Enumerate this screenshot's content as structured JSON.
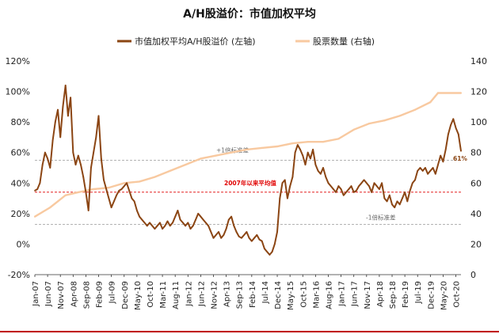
{
  "chart_data": {
    "type": "line",
    "title": "A/H股溢价：市值加权平均",
    "x_ticks": [
      "Jan-07",
      "Jun-07",
      "Nov-07",
      "Apr-08",
      "Sep-08",
      "Feb-09",
      "Jul-09",
      "Dec-09",
      "May-10",
      "Oct-10",
      "Mar-11",
      "Aug-11",
      "Jan-12",
      "Jun-12",
      "Nov-12",
      "Apr-13",
      "Sep-13",
      "Feb-14",
      "Jul-14",
      "Dec-14",
      "May-15",
      "Oct-15",
      "Mar-16",
      "Aug-16",
      "Jan-17",
      "Jun-17",
      "Nov-17",
      "Apr-18",
      "Sep-18",
      "Feb-19",
      "Jul-19",
      "Dec-19",
      "May-20",
      "Oct-20"
    ],
    "y_left_ticks": [
      "-20%",
      "0%",
      "20%",
      "40%",
      "60%",
      "80%",
      "100%",
      "120%"
    ],
    "y_right_ticks": [
      "0",
      "20",
      "40",
      "60",
      "80",
      "100",
      "120",
      "140"
    ],
    "y_left_range": [
      -20,
      120
    ],
    "y_right_range": [
      0,
      140
    ],
    "grid": false,
    "legend_position": "top",
    "series": [
      {
        "name": "市值加权平均A/H股溢价 (左轴)",
        "axis": "left",
        "color": "#8B4513",
        "points": [
          [
            "2007-01",
            35
          ],
          [
            "2007-02",
            36
          ],
          [
            "2007-03",
            40
          ],
          [
            "2007-04",
            52
          ],
          [
            "2007-05",
            60
          ],
          [
            "2007-06",
            56
          ],
          [
            "2007-07",
            50
          ],
          [
            "2007-08",
            68
          ],
          [
            "2007-09",
            80
          ],
          [
            "2007-10",
            88
          ],
          [
            "2007-11",
            70
          ],
          [
            "2007-12",
            90
          ],
          [
            "2008-01",
            104
          ],
          [
            "2008-02",
            84
          ],
          [
            "2008-03",
            96
          ],
          [
            "2008-04",
            60
          ],
          [
            "2008-05",
            52
          ],
          [
            "2008-06",
            58
          ],
          [
            "2008-07",
            52
          ],
          [
            "2008-08",
            44
          ],
          [
            "2008-09",
            34
          ],
          [
            "2008-10",
            22
          ],
          [
            "2008-11",
            50
          ],
          [
            "2008-12",
            60
          ],
          [
            "2009-01",
            70
          ],
          [
            "2009-02",
            84
          ],
          [
            "2009-03",
            56
          ],
          [
            "2009-04",
            42
          ],
          [
            "2009-05",
            36
          ],
          [
            "2009-06",
            30
          ],
          [
            "2009-07",
            24
          ],
          [
            "2009-08",
            28
          ],
          [
            "2009-09",
            32
          ],
          [
            "2009-10",
            35
          ],
          [
            "2009-11",
            36
          ],
          [
            "2009-12",
            38
          ],
          [
            "2010-01",
            40
          ],
          [
            "2010-02",
            35
          ],
          [
            "2010-03",
            30
          ],
          [
            "2010-04",
            28
          ],
          [
            "2010-05",
            22
          ],
          [
            "2010-06",
            18
          ],
          [
            "2010-07",
            16
          ],
          [
            "2010-08",
            14
          ],
          [
            "2010-09",
            12
          ],
          [
            "2010-10",
            14
          ],
          [
            "2010-11",
            12
          ],
          [
            "2010-12",
            10
          ],
          [
            "2011-01",
            12
          ],
          [
            "2011-02",
            14
          ],
          [
            "2011-03",
            10
          ],
          [
            "2011-04",
            12
          ],
          [
            "2011-05",
            15
          ],
          [
            "2011-06",
            12
          ],
          [
            "2011-07",
            14
          ],
          [
            "2011-08",
            18
          ],
          [
            "2011-09",
            22
          ],
          [
            "2011-10",
            16
          ],
          [
            "2011-11",
            14
          ],
          [
            "2011-12",
            12
          ],
          [
            "2012-01",
            14
          ],
          [
            "2012-02",
            10
          ],
          [
            "2012-03",
            12
          ],
          [
            "2012-04",
            16
          ],
          [
            "2012-05",
            20
          ],
          [
            "2012-06",
            18
          ],
          [
            "2012-07",
            16
          ],
          [
            "2012-08",
            14
          ],
          [
            "2012-09",
            12
          ],
          [
            "2012-10",
            8
          ],
          [
            "2012-11",
            4
          ],
          [
            "2012-12",
            6
          ],
          [
            "2013-01",
            8
          ],
          [
            "2013-02",
            4
          ],
          [
            "2013-03",
            6
          ],
          [
            "2013-04",
            10
          ],
          [
            "2013-05",
            16
          ],
          [
            "2013-06",
            18
          ],
          [
            "2013-07",
            12
          ],
          [
            "2013-08",
            8
          ],
          [
            "2013-09",
            5
          ],
          [
            "2013-10",
            4
          ],
          [
            "2013-11",
            6
          ],
          [
            "2013-12",
            8
          ],
          [
            "2014-01",
            4
          ],
          [
            "2014-02",
            2
          ],
          [
            "2014-03",
            4
          ],
          [
            "2014-04",
            6
          ],
          [
            "2014-05",
            3
          ],
          [
            "2014-06",
            2
          ],
          [
            "2014-07",
            -3
          ],
          [
            "2014-08",
            -5
          ],
          [
            "2014-09",
            -7
          ],
          [
            "2014-10",
            -5
          ],
          [
            "2014-11",
            0
          ],
          [
            "2014-12",
            8
          ],
          [
            "2015-01",
            30
          ],
          [
            "2015-02",
            40
          ],
          [
            "2015-03",
            42
          ],
          [
            "2015-04",
            30
          ],
          [
            "2015-05",
            38
          ],
          [
            "2015-06",
            44
          ],
          [
            "2015-07",
            60
          ],
          [
            "2015-08",
            65
          ],
          [
            "2015-09",
            62
          ],
          [
            "2015-10",
            58
          ],
          [
            "2015-11",
            52
          ],
          [
            "2015-12",
            60
          ],
          [
            "2016-01",
            56
          ],
          [
            "2016-02",
            62
          ],
          [
            "2016-03",
            52
          ],
          [
            "2016-04",
            48
          ],
          [
            "2016-05",
            46
          ],
          [
            "2016-06",
            50
          ],
          [
            "2016-07",
            44
          ],
          [
            "2016-08",
            40
          ],
          [
            "2016-09",
            38
          ],
          [
            "2016-10",
            36
          ],
          [
            "2016-11",
            34
          ],
          [
            "2016-12",
            38
          ],
          [
            "2017-01",
            36
          ],
          [
            "2017-02",
            32
          ],
          [
            "2017-03",
            34
          ],
          [
            "2017-04",
            36
          ],
          [
            "2017-05",
            38
          ],
          [
            "2017-06",
            34
          ],
          [
            "2017-07",
            35
          ],
          [
            "2017-08",
            38
          ],
          [
            "2017-09",
            40
          ],
          [
            "2017-10",
            42
          ],
          [
            "2017-11",
            40
          ],
          [
            "2017-12",
            38
          ],
          [
            "2018-01",
            34
          ],
          [
            "2018-02",
            40
          ],
          [
            "2018-03",
            38
          ],
          [
            "2018-04",
            36
          ],
          [
            "2018-05",
            40
          ],
          [
            "2018-06",
            30
          ],
          [
            "2018-07",
            28
          ],
          [
            "2018-08",
            32
          ],
          [
            "2018-09",
            26
          ],
          [
            "2018-10",
            24
          ],
          [
            "2018-11",
            28
          ],
          [
            "2018-12",
            26
          ],
          [
            "2019-01",
            30
          ],
          [
            "2019-02",
            34
          ],
          [
            "2019-03",
            28
          ],
          [
            "2019-04",
            35
          ],
          [
            "2019-05",
            40
          ],
          [
            "2019-06",
            42
          ],
          [
            "2019-07",
            48
          ],
          [
            "2019-08",
            50
          ],
          [
            "2019-09",
            48
          ],
          [
            "2019-10",
            50
          ],
          [
            "2019-11",
            46
          ],
          [
            "2019-12",
            48
          ],
          [
            "2020-01",
            50
          ],
          [
            "2020-02",
            46
          ],
          [
            "2020-03",
            52
          ],
          [
            "2020-04",
            58
          ],
          [
            "2020-05",
            54
          ],
          [
            "2020-06",
            62
          ],
          [
            "2020-07",
            72
          ],
          [
            "2020-08",
            78
          ],
          [
            "2020-09",
            82
          ],
          [
            "2020-10",
            76
          ],
          [
            "2020-11",
            72
          ],
          [
            "2020-12",
            61
          ]
        ]
      },
      {
        "name": "股票数量 (右轴)",
        "axis": "right",
        "color": "#F8C9A0",
        "points": [
          [
            "2007-01",
            38
          ],
          [
            "2007-04",
            41
          ],
          [
            "2007-07",
            44
          ],
          [
            "2007-10",
            48
          ],
          [
            "2008-01",
            52
          ],
          [
            "2008-06",
            54
          ],
          [
            "2008-12",
            56
          ],
          [
            "2009-06",
            57
          ],
          [
            "2009-12",
            60
          ],
          [
            "2010-06",
            61
          ],
          [
            "2010-12",
            64
          ],
          [
            "2011-06",
            68
          ],
          [
            "2011-12",
            72
          ],
          [
            "2012-06",
            76
          ],
          [
            "2012-12",
            78
          ],
          [
            "2013-06",
            80
          ],
          [
            "2013-12",
            82
          ],
          [
            "2014-06",
            83
          ],
          [
            "2014-12",
            84
          ],
          [
            "2015-06",
            86
          ],
          [
            "2015-12",
            87
          ],
          [
            "2016-06",
            87
          ],
          [
            "2016-12",
            89
          ],
          [
            "2017-06",
            95
          ],
          [
            "2017-12",
            99
          ],
          [
            "2018-06",
            101
          ],
          [
            "2018-12",
            104
          ],
          [
            "2019-06",
            108
          ],
          [
            "2019-12",
            113
          ],
          [
            "2020-03",
            119
          ],
          [
            "2020-12",
            119
          ]
        ]
      }
    ],
    "reference_lines": [
      {
        "label": "+1倍标准差",
        "value": 55,
        "color": "#9a9a9a",
        "style": "dashed"
      },
      {
        "label": "2007年以来平均值",
        "value": 34,
        "color": "#e00000",
        "style": "dashed"
      },
      {
        "label": "-1倍标准差",
        "value": 13,
        "color": "#9a9a9a",
        "style": "dashed"
      }
    ],
    "annotations": [
      {
        "text": "61%",
        "x": "2020-12",
        "y": 61,
        "color": "#8B4513"
      }
    ]
  },
  "footer": {
    "rule_color": "#C00000"
  }
}
